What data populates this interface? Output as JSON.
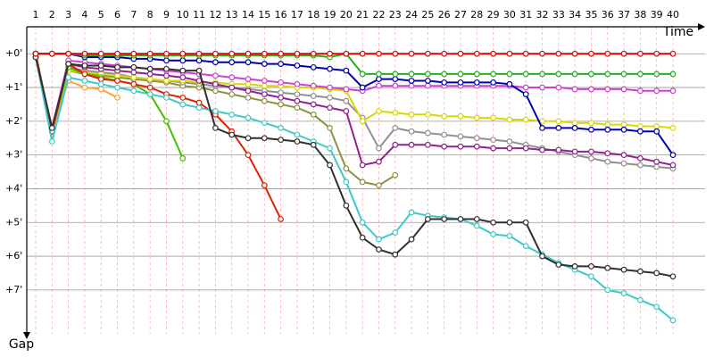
{
  "chart_data": {
    "type": "line",
    "x_label": "Time",
    "y_label": "Gap",
    "categories": [
      1,
      2,
      3,
      4,
      5,
      6,
      7,
      8,
      9,
      10,
      11,
      12,
      13,
      14,
      15,
      16,
      17,
      18,
      19,
      20,
      21,
      22,
      23,
      24,
      25,
      26,
      27,
      28,
      29,
      30,
      31,
      32,
      33,
      34,
      35,
      36,
      37,
      38,
      39,
      40
    ],
    "ylim": [
      -0.8,
      8.3
    ],
    "yticks": [
      {
        "value": 0,
        "label": "+0'"
      },
      {
        "value": 1,
        "label": "+1'"
      },
      {
        "value": 2,
        "label": "+2'"
      },
      {
        "value": 3,
        "label": "+3'"
      },
      {
        "value": 4,
        "label": "+4'"
      },
      {
        "value": 5,
        "label": "+5'"
      },
      {
        "value": 6,
        "label": "+6'"
      },
      {
        "value": 7,
        "label": "+7'"
      }
    ],
    "grid": true,
    "series": [
      {
        "color": "#909040",
        "values": [
          0,
          2.3,
          0.5,
          0.6,
          0.65,
          0.7,
          0.75,
          0.8,
          0.85,
          0.95,
          1.0,
          1.1,
          1.2,
          1.3,
          1.4,
          1.5,
          1.6,
          1.8,
          2.2,
          3.4,
          3.8,
          3.9,
          3.6,
          null,
          null,
          null,
          null,
          null,
          null,
          null,
          null,
          null,
          null,
          null,
          null,
          null,
          null,
          null,
          null,
          null
        ]
      },
      {
        "color": "#909090",
        "values": [
          0,
          2.3,
          0.4,
          0.5,
          0.55,
          0.6,
          0.7,
          0.75,
          0.8,
          0.85,
          0.9,
          0.95,
          1.0,
          1.05,
          1.1,
          1.15,
          1.2,
          1.25,
          1.3,
          1.4,
          1.9,
          2.8,
          2.2,
          2.3,
          2.35,
          2.4,
          2.45,
          2.5,
          2.55,
          2.6,
          2.7,
          2.8,
          2.9,
          3.0,
          3.1,
          3.2,
          3.25,
          3.3,
          3.35,
          3.4
        ]
      },
      {
        "color": "#d8d800",
        "values": [
          0,
          2.3,
          0.5,
          0.55,
          0.6,
          0.65,
          0.7,
          0.75,
          0.8,
          0.8,
          0.85,
          0.85,
          0.9,
          0.9,
          0.95,
          0.95,
          1.0,
          1.0,
          1.05,
          1.1,
          2.0,
          1.7,
          1.75,
          1.8,
          1.8,
          1.85,
          1.85,
          1.9,
          1.9,
          1.95,
          1.95,
          2.0,
          2.0,
          2.05,
          2.05,
          2.1,
          2.1,
          2.15,
          2.15,
          2.2
        ]
      },
      {
        "color": "#902090",
        "values": [
          0.1,
          2.2,
          0.3,
          0.4,
          0.45,
          0.5,
          0.55,
          0.6,
          0.65,
          0.7,
          0.8,
          0.9,
          1.0,
          1.1,
          1.2,
          1.3,
          1.4,
          1.5,
          1.6,
          1.7,
          3.3,
          3.2,
          2.7,
          2.7,
          2.7,
          2.75,
          2.75,
          2.75,
          2.8,
          2.8,
          2.8,
          2.85,
          2.85,
          2.9,
          2.9,
          2.95,
          3.0,
          3.1,
          3.2,
          3.3
        ]
      },
      {
        "color": "#d040d0",
        "values": [
          0.1,
          2.2,
          0.2,
          0.25,
          0.3,
          0.35,
          0.4,
          0.45,
          0.5,
          0.55,
          0.6,
          0.65,
          0.7,
          0.75,
          0.8,
          0.85,
          0.9,
          0.95,
          1.0,
          1.05,
          1.1,
          0.95,
          0.95,
          0.95,
          0.95,
          0.95,
          0.95,
          0.95,
          0.95,
          0.95,
          1.0,
          1.0,
          1.0,
          1.05,
          1.05,
          1.05,
          1.05,
          1.1,
          1.1,
          1.1
        ]
      },
      {
        "color": "#ffa040",
        "values": [
          0,
          2.3,
          0.8,
          1.0,
          1.05,
          1.3,
          null,
          null,
          null,
          null,
          null,
          null,
          null,
          null,
          null,
          null,
          null,
          null,
          null,
          null,
          null,
          null,
          null,
          null,
          null,
          null,
          null,
          null,
          null,
          null,
          null,
          null,
          null,
          null,
          null,
          null,
          null,
          null,
          null,
          null
        ]
      },
      {
        "color": "#40c000",
        "values": [
          0.1,
          2.3,
          0.4,
          0.6,
          0.7,
          0.8,
          0.9,
          1.2,
          2.0,
          3.1,
          null,
          null,
          null,
          null,
          null,
          null,
          null,
          null,
          null,
          null,
          null,
          null,
          null,
          null,
          null,
          null,
          null,
          null,
          null,
          null,
          null,
          null,
          null,
          null,
          null,
          null,
          null,
          null,
          null,
          null
        ]
      },
      {
        "color": "#e02000",
        "values": [
          0,
          2.3,
          0.3,
          0.6,
          0.75,
          0.8,
          0.9,
          1.0,
          1.2,
          1.3,
          1.45,
          1.8,
          2.3,
          3.0,
          3.9,
          4.9,
          null,
          null,
          null,
          null,
          null,
          null,
          null,
          null,
          null,
          null,
          null,
          null,
          null,
          null,
          null,
          null,
          null,
          null,
          null,
          null,
          null,
          null,
          null,
          null
        ]
      },
      {
        "color": "#40c8c8",
        "values": [
          0.1,
          2.6,
          0.7,
          0.8,
          0.9,
          1.0,
          1.1,
          1.2,
          1.3,
          1.5,
          1.6,
          1.7,
          1.8,
          1.9,
          2.05,
          2.2,
          2.4,
          2.6,
          2.8,
          3.8,
          5.0,
          5.5,
          5.3,
          4.7,
          4.8,
          4.85,
          4.9,
          5.1,
          5.35,
          5.4,
          5.7,
          5.95,
          6.2,
          6.4,
          6.6,
          7.0,
          7.1,
          7.3,
          7.5,
          7.9
        ]
      },
      {
        "color": "#303030",
        "values": [
          0.1,
          2.2,
          0.3,
          0.35,
          0.35,
          0.4,
          0.4,
          0.45,
          0.45,
          0.5,
          0.5,
          2.2,
          2.4,
          2.5,
          2.5,
          2.55,
          2.6,
          2.7,
          3.3,
          4.5,
          5.45,
          5.8,
          5.95,
          5.5,
          4.9,
          4.9,
          4.9,
          4.9,
          5.0,
          5.0,
          5.0,
          6.0,
          6.25,
          6.3,
          6.3,
          6.35,
          6.4,
          6.45,
          6.5,
          6.6
        ]
      },
      {
        "color": "#0000b0",
        "values": [
          0,
          0,
          0,
          0.1,
          0.1,
          0.1,
          0.15,
          0.15,
          0.2,
          0.2,
          0.2,
          0.25,
          0.25,
          0.25,
          0.3,
          0.3,
          0.35,
          0.4,
          0.45,
          0.5,
          1.0,
          0.75,
          0.75,
          0.8,
          0.8,
          0.85,
          0.85,
          0.85,
          0.85,
          0.9,
          1.2,
          2.2,
          2.2,
          2.2,
          2.25,
          2.25,
          2.25,
          2.3,
          2.3,
          3.0
        ]
      },
      {
        "color": "#20b020",
        "values": [
          0,
          0,
          0,
          0.05,
          0.05,
          0.05,
          0.05,
          0.05,
          0.05,
          0.05,
          0.05,
          0.05,
          0.05,
          0.05,
          0.05,
          0.05,
          0.05,
          0.05,
          0.1,
          0,
          0.6,
          0.6,
          0.6,
          0.6,
          0.6,
          0.6,
          0.6,
          0.6,
          0.6,
          0.6,
          0.6,
          0.6,
          0.6,
          0.6,
          0.6,
          0.6,
          0.6,
          0.6,
          0.6,
          0.6
        ]
      },
      {
        "color": "#e00000",
        "values": [
          0,
          0,
          0,
          0,
          0,
          0,
          0,
          0,
          0,
          0,
          0,
          0,
          0,
          0,
          0,
          0,
          0,
          0,
          0,
          0,
          0,
          0,
          0,
          0,
          0,
          0,
          0,
          0,
          0,
          0,
          0,
          0,
          0,
          0,
          0,
          0,
          0,
          0,
          0,
          0
        ]
      }
    ]
  }
}
